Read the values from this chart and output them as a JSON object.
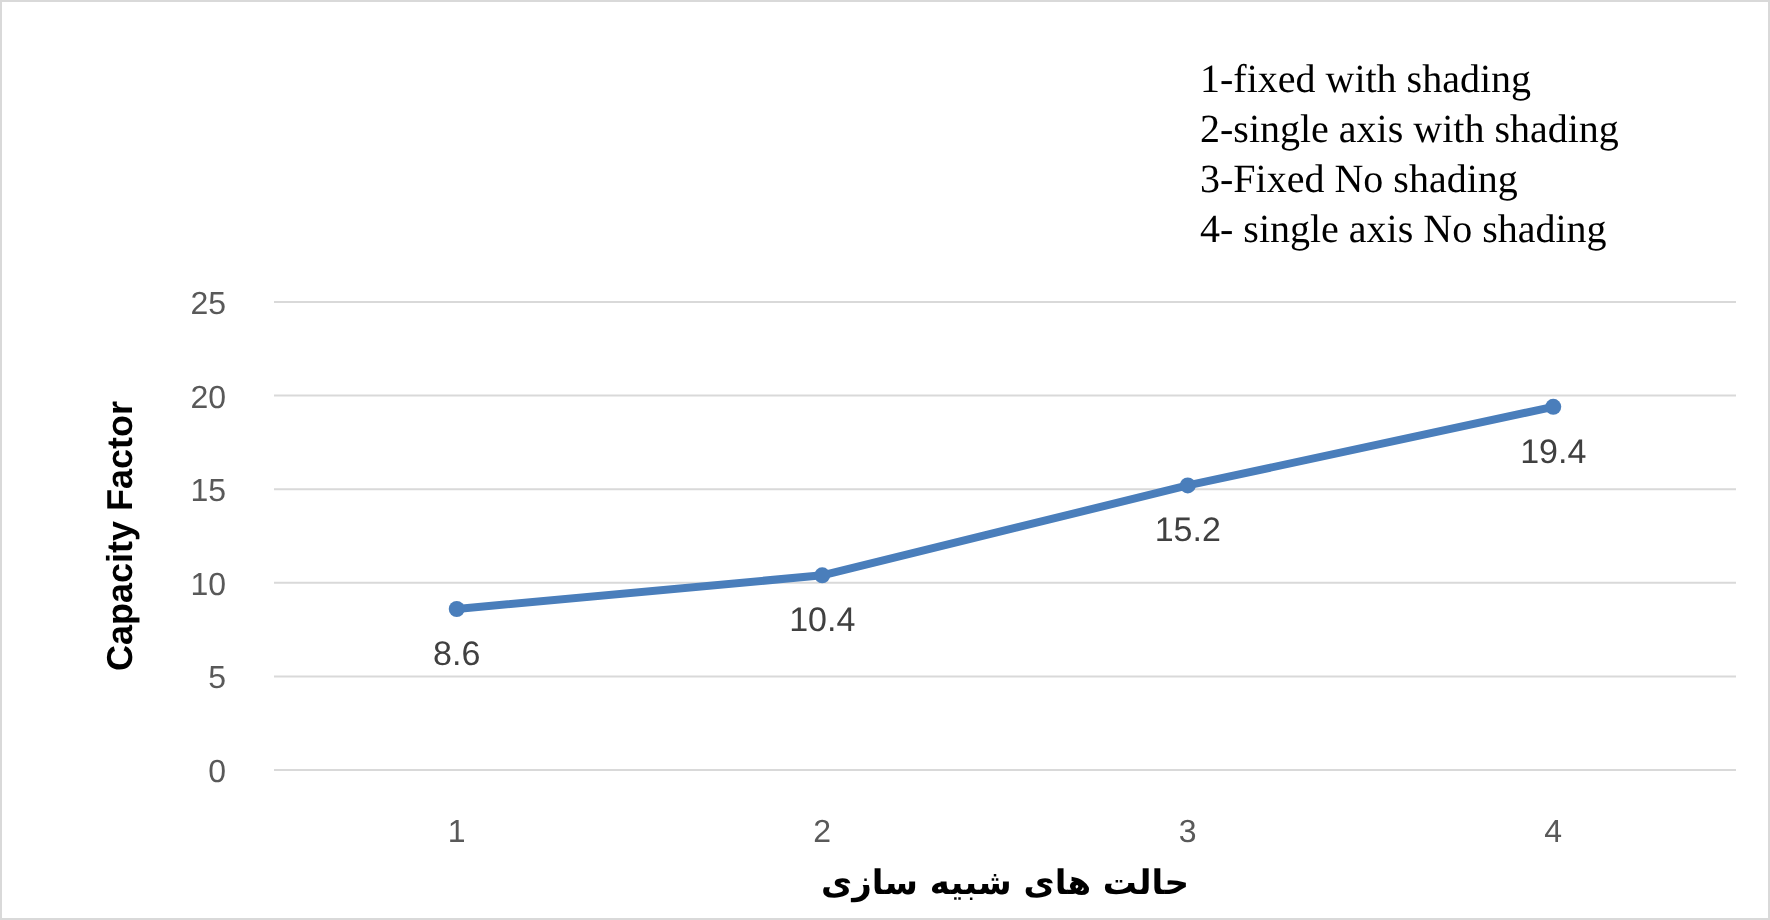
{
  "chart_data": {
    "type": "line",
    "xlabel": "حالت های شبیه سازی",
    "ylabel": "Capacity Factor",
    "categories": [
      "1",
      "2",
      "3",
      "4"
    ],
    "series": [
      {
        "color": "#4a7ebb",
        "values": [
          8.6,
          10.4,
          15.2,
          19.4
        ]
      }
    ],
    "ylim": [
      0,
      25
    ],
    "yticks": [
      0,
      5,
      10,
      15,
      20,
      25
    ],
    "grid": "y",
    "marker": "circle",
    "data_labels": true,
    "annotations": [
      "1-fixed with shading",
      "2-single axis with shading",
      "3-Fixed No shading",
      "4- single axis No shading"
    ]
  }
}
